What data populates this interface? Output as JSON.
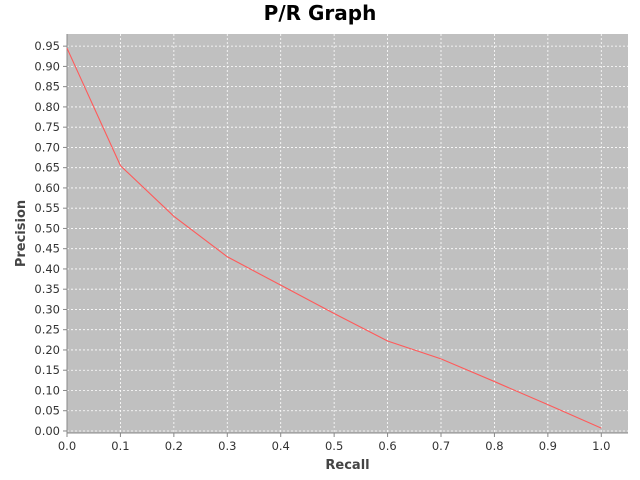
{
  "chart_data": {
    "type": "line",
    "title": "P/R Graph",
    "xlabel": "Recall",
    "ylabel": "Precision",
    "xlim": [
      0.0,
      1.05
    ],
    "ylim": [
      -0.005,
      0.98
    ],
    "x_ticks": [
      "0.0",
      "0.1",
      "0.2",
      "0.3",
      "0.4",
      "0.5",
      "0.6",
      "0.7",
      "0.8",
      "0.9",
      "1.0"
    ],
    "y_ticks": [
      "0.00",
      "0.05",
      "0.10",
      "0.15",
      "0.20",
      "0.25",
      "0.30",
      "0.35",
      "0.40",
      "0.45",
      "0.50",
      "0.55",
      "0.60",
      "0.65",
      "0.70",
      "0.75",
      "0.80",
      "0.85",
      "0.90",
      "0.95"
    ],
    "grid": true,
    "plot_background": "#c0c0c0",
    "grid_color": "#ffffff",
    "series": [
      {
        "color": "#ff5a5a",
        "x": [
          0.0,
          0.1,
          0.2,
          0.3,
          0.4,
          0.5,
          0.6,
          0.7,
          0.8,
          0.9,
          1.0
        ],
        "y": [
          0.945,
          0.655,
          0.53,
          0.43,
          0.36,
          0.29,
          0.222,
          0.178,
          0.122,
          0.065,
          0.007
        ]
      }
    ]
  }
}
